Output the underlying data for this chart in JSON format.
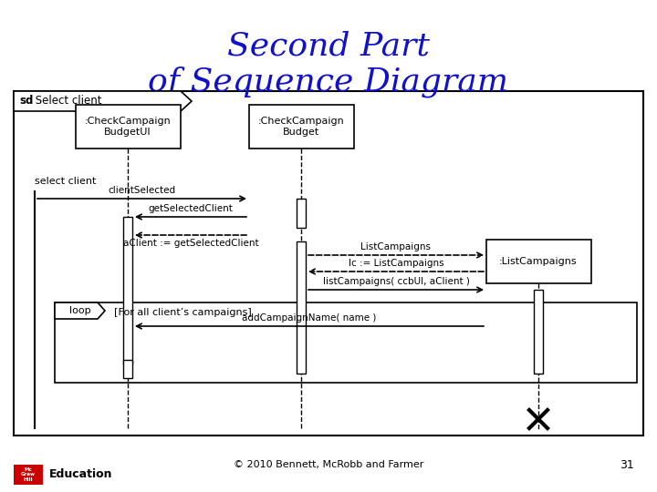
{
  "title_line1": "Second Part",
  "title_line2": "of Sequence Diagram",
  "title_color": "#1111CC",
  "title_fontsize": 26,
  "bg_color": "#FFFFFF",
  "footer_text": "© 2010 Bennett, McRobb and Farmer",
  "page_number": "31",
  "sd_label_bold": "sd",
  "sd_label_rest": " Select client",
  "obj1_label": ":CheckCampaign\nBudgetUI",
  "obj2_label": ":CheckCampaign\nBudget",
  "obj3_label": ":ListCampaigns",
  "msg1": "clientSelected",
  "msg2": "getSelectedClient",
  "msg3": "aClient := getSelectedClient",
  "msg4": "ListCampaigns",
  "msg5": "lc := ListCampaigns",
  "msg6": "listCampaigns( ccbUI, aClient )",
  "msg7": "addCampaignName( name )",
  "loop_label": "loop",
  "loop_guard": "[For all client’s campaigns]",
  "actor_label": "select client"
}
